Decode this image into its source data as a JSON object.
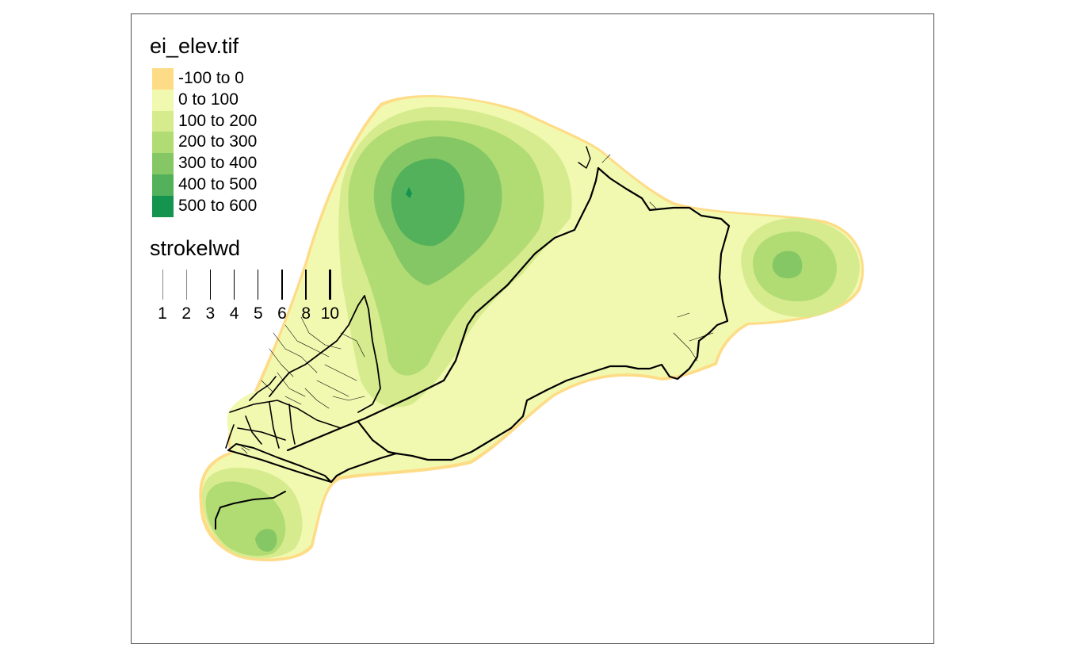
{
  "legend": {
    "elevation_title": "ei_elev.tif",
    "elevation_classes": [
      {
        "label": "-100 to 0",
        "color": "#fedc87"
      },
      {
        "label": "0 to 100",
        "color": "#f1f9b0"
      },
      {
        "label": "100 to 200",
        "color": "#d6eb8e"
      },
      {
        "label": "200 to 300",
        "color": "#b1db73"
      },
      {
        "label": "300 to 400",
        "color": "#86c765"
      },
      {
        "label": "400 to 500",
        "color": "#52b15a"
      },
      {
        "label": "500 to 600",
        "color": "#14944f"
      }
    ],
    "stroke_title": "strokelwd",
    "stroke_widths": [
      {
        "label": "1",
        "value": 1
      },
      {
        "label": "2",
        "value": 2
      },
      {
        "label": "3",
        "value": 3
      },
      {
        "label": "4",
        "value": 4
      },
      {
        "label": "5",
        "value": 5
      },
      {
        "label": "6",
        "value": 6
      },
      {
        "label": "8",
        "value": 8
      },
      {
        "label": "10",
        "value": 10
      }
    ]
  },
  "map": {
    "road_color": "#000000",
    "frame_color": "#4d4d4d"
  }
}
